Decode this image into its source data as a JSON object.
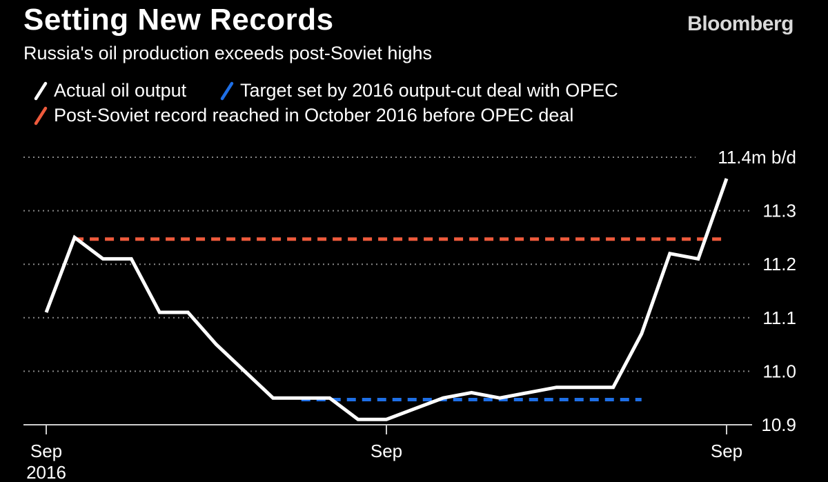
{
  "header": {
    "title": "Setting New Records",
    "subtitle": "Russia's oil production exceeds post-Soviet highs",
    "brand": "Bloomberg"
  },
  "legend": [
    {
      "label": "Actual oil output",
      "color": "#ffffff"
    },
    {
      "label": "Target set by 2016 output-cut deal with OPEC",
      "color": "#1e6fe6"
    },
    {
      "label": "Post-Soviet record reached in October 2016 before OPEC deal",
      "color": "#ee5a3c"
    }
  ],
  "chart_data": {
    "type": "line",
    "ylim": [
      10.9,
      11.4
    ],
    "y_ticks": [
      {
        "value": 10.9,
        "label": "10.9"
      },
      {
        "value": 11.0,
        "label": "11.0"
      },
      {
        "value": 11.1,
        "label": "11.1"
      },
      {
        "value": 11.2,
        "label": "11.2"
      },
      {
        "value": 11.3,
        "label": "11.3"
      },
      {
        "value": 11.4,
        "label": "11.4m b/d"
      }
    ],
    "x_ticks": [
      {
        "index": 0,
        "label": "Sep",
        "sublabel": "2016"
      },
      {
        "index": 12,
        "label": "Sep",
        "sublabel": ""
      },
      {
        "index": 24,
        "label": "Sep",
        "sublabel": ""
      }
    ],
    "series": [
      {
        "name": "Actual oil output",
        "color": "#ffffff",
        "x": [
          "2016-09",
          "2016-10",
          "2016-11",
          "2016-12",
          "2017-01",
          "2017-02",
          "2017-03",
          "2017-04",
          "2017-05",
          "2017-06",
          "2017-07",
          "2017-08",
          "2017-09",
          "2017-10",
          "2017-11",
          "2017-12",
          "2018-01",
          "2018-02",
          "2018-03",
          "2018-04",
          "2018-05",
          "2018-06",
          "2018-07",
          "2018-08",
          "2018-09"
        ],
        "values": [
          11.11,
          11.25,
          11.21,
          11.21,
          11.11,
          11.11,
          11.05,
          11.0,
          10.95,
          10.95,
          10.95,
          10.91,
          10.91,
          10.93,
          10.95,
          10.96,
          10.95,
          10.96,
          10.97,
          10.97,
          10.97,
          11.07,
          11.22,
          11.21,
          11.36
        ]
      }
    ],
    "reference_lines": [
      {
        "name": "Post-Soviet record reached in October 2016 before OPEC deal",
        "value": 11.247,
        "x_start": "2016-10",
        "x_end": "2018-09",
        "color": "#ee5a3c",
        "style": "dashed"
      },
      {
        "name": "Target set by 2016 output-cut deal with OPEC",
        "value": 10.947,
        "x_start": "2017-06",
        "x_end": "2018-06",
        "color": "#1e6fe6",
        "style": "dashed"
      }
    ],
    "grid": true
  }
}
